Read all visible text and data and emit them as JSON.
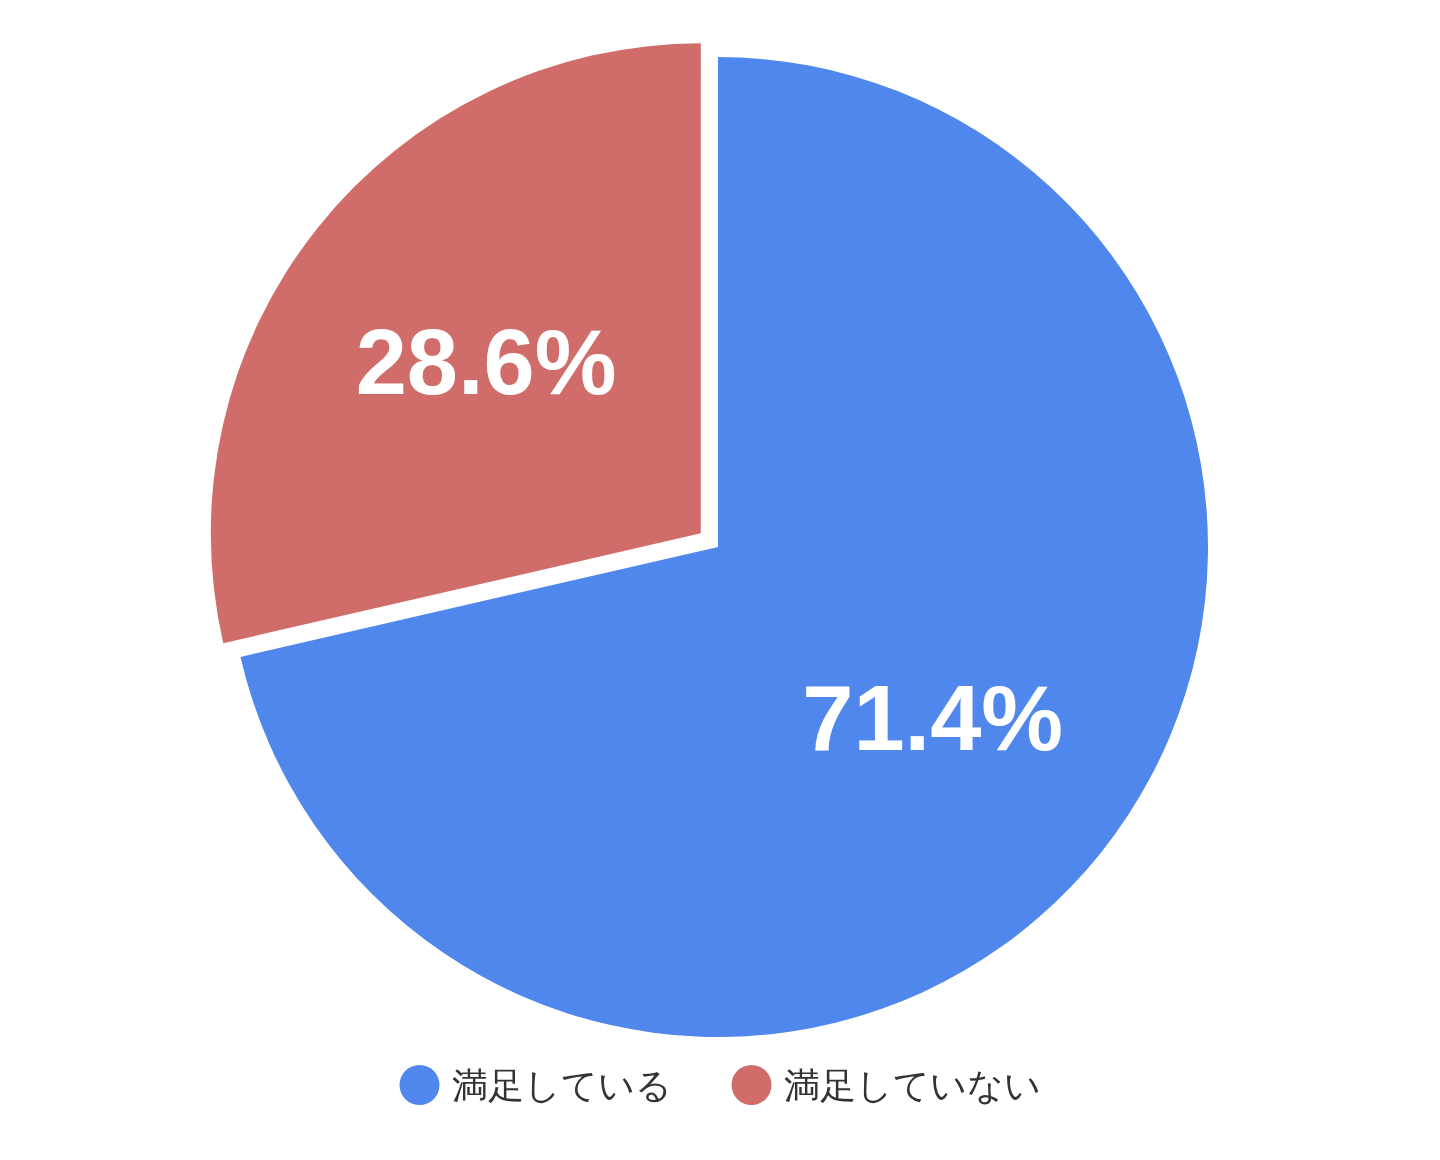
{
  "chart_data": {
    "type": "pie",
    "categories": [
      "満足している",
      "満足していない"
    ],
    "values": [
      71.4,
      28.6
    ],
    "colors": [
      "#5087ec",
      "#d06c6a"
    ],
    "value_labels": [
      "71.4%",
      "28.6%"
    ],
    "legend": "bottom"
  }
}
